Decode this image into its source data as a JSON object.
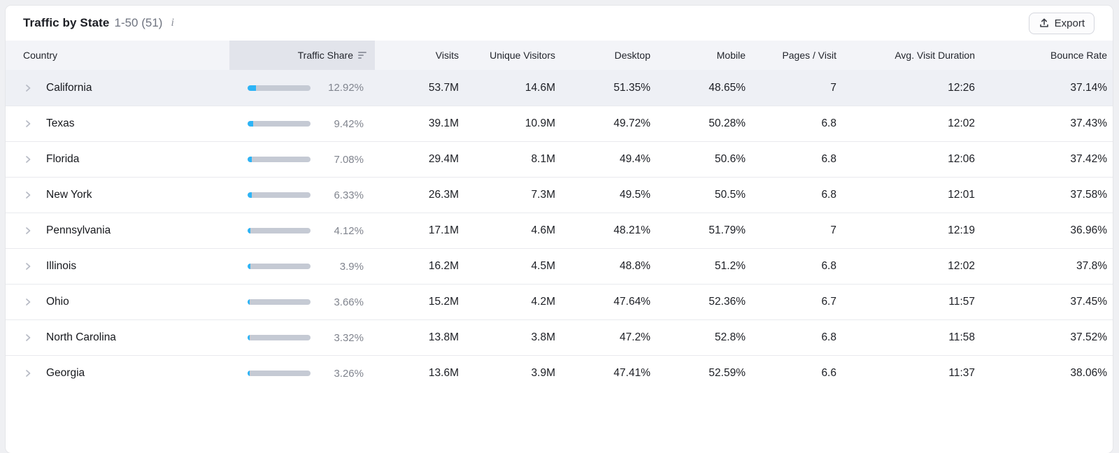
{
  "header": {
    "title": "Traffic by State",
    "range": "1-50 (51)",
    "info_icon": "i",
    "export_label": "Export"
  },
  "table": {
    "columns": [
      "Country",
      "Traffic Share",
      "Visits",
      "Unique Visitors",
      "Desktop",
      "Mobile",
      "Pages / Visit",
      "Avg. Visit Duration",
      "Bounce Rate"
    ],
    "sorted_column": "Traffic Share",
    "sort_direction": "descending",
    "rows": [
      {
        "country": "California",
        "traffic_share": "12.92%",
        "share_pct": 12.92,
        "visits": "53.7M",
        "unique_visitors": "14.6M",
        "desktop": "51.35%",
        "mobile": "48.65%",
        "pages_per_visit": "7",
        "avg_visit_duration": "12:26",
        "bounce_rate": "37.14%",
        "selected": true
      },
      {
        "country": "Texas",
        "traffic_share": "9.42%",
        "share_pct": 9.42,
        "visits": "39.1M",
        "unique_visitors": "10.9M",
        "desktop": "49.72%",
        "mobile": "50.28%",
        "pages_per_visit": "6.8",
        "avg_visit_duration": "12:02",
        "bounce_rate": "37.43%",
        "selected": false
      },
      {
        "country": "Florida",
        "traffic_share": "7.08%",
        "share_pct": 7.08,
        "visits": "29.4M",
        "unique_visitors": "8.1M",
        "desktop": "49.4%",
        "mobile": "50.6%",
        "pages_per_visit": "6.8",
        "avg_visit_duration": "12:06",
        "bounce_rate": "37.42%",
        "selected": false
      },
      {
        "country": "New York",
        "traffic_share": "6.33%",
        "share_pct": 6.33,
        "visits": "26.3M",
        "unique_visitors": "7.3M",
        "desktop": "49.5%",
        "mobile": "50.5%",
        "pages_per_visit": "6.8",
        "avg_visit_duration": "12:01",
        "bounce_rate": "37.58%",
        "selected": false
      },
      {
        "country": "Pennsylvania",
        "traffic_share": "4.12%",
        "share_pct": 4.12,
        "visits": "17.1M",
        "unique_visitors": "4.6M",
        "desktop": "48.21%",
        "mobile": "51.79%",
        "pages_per_visit": "7",
        "avg_visit_duration": "12:19",
        "bounce_rate": "36.96%",
        "selected": false
      },
      {
        "country": "Illinois",
        "traffic_share": "3.9%",
        "share_pct": 3.9,
        "visits": "16.2M",
        "unique_visitors": "4.5M",
        "desktop": "48.8%",
        "mobile": "51.2%",
        "pages_per_visit": "6.8",
        "avg_visit_duration": "12:02",
        "bounce_rate": "37.8%",
        "selected": false
      },
      {
        "country": "Ohio",
        "traffic_share": "3.66%",
        "share_pct": 3.66,
        "visits": "15.2M",
        "unique_visitors": "4.2M",
        "desktop": "47.64%",
        "mobile": "52.36%",
        "pages_per_visit": "6.7",
        "avg_visit_duration": "11:57",
        "bounce_rate": "37.45%",
        "selected": false
      },
      {
        "country": "North Carolina",
        "traffic_share": "3.32%",
        "share_pct": 3.32,
        "visits": "13.8M",
        "unique_visitors": "3.8M",
        "desktop": "47.2%",
        "mobile": "52.8%",
        "pages_per_visit": "6.8",
        "avg_visit_duration": "11:58",
        "bounce_rate": "37.52%",
        "selected": false
      },
      {
        "country": "Georgia",
        "traffic_share": "3.26%",
        "share_pct": 3.26,
        "visits": "13.6M",
        "unique_visitors": "3.9M",
        "desktop": "47.41%",
        "mobile": "52.59%",
        "pages_per_visit": "6.6",
        "avg_visit_duration": "11:37",
        "bounce_rate": "38.06%",
        "selected": false
      }
    ]
  },
  "colors": {
    "bar_fill": "#2db4f6",
    "bar_track": "#c5cad4",
    "sorted_header_bg": "#e2e4eb",
    "selected_row_bg": "#eef0f5",
    "header_bg": "#f3f4f8"
  }
}
